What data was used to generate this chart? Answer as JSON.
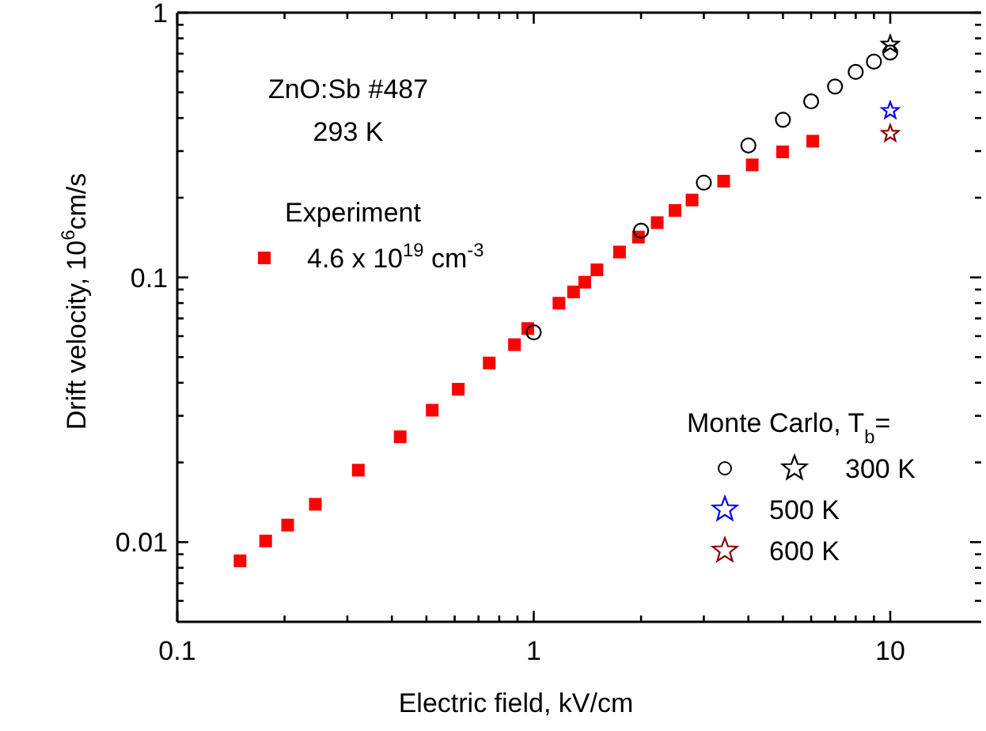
{
  "chart_data": {
    "type": "scatter",
    "xlabel": "Electric field, kV/cm",
    "ylabel": "Drift velocity, 10$^{6}$cm/s",
    "log": "xy",
    "xlim": [
      0.1,
      18
    ],
    "ylim": [
      0.005,
      1
    ],
    "xticks": [
      0.1,
      {
        "value": 0.2,
        "label": null
      },
      {
        "value": 0.3,
        "label": null
      },
      {
        "value": 0.4,
        "label": null
      },
      {
        "value": 0.5,
        "label": null
      },
      {
        "value": 0.6,
        "label": null
      },
      {
        "value": 0.7,
        "label": null
      },
      {
        "value": 0.8,
        "label": null
      },
      {
        "value": 0.9,
        "label": null
      },
      1,
      {
        "value": 2,
        "label": null
      },
      {
        "value": 3,
        "label": null
      },
      {
        "value": 4,
        "label": null
      },
      {
        "value": 5,
        "label": null
      },
      {
        "value": 6,
        "label": null
      },
      {
        "value": 7,
        "label": null
      },
      {
        "value": 8,
        "label": null
      },
      {
        "value": 9,
        "label": null
      },
      10
    ],
    "yticks": [
      {
        "value": 0.006,
        "label": null
      },
      {
        "value": 0.007,
        "label": null
      },
      {
        "value": 0.008,
        "label": null
      },
      {
        "value": 0.009,
        "label": null
      },
      0.01,
      {
        "value": 0.02,
        "label": null
      },
      {
        "value": 0.03,
        "label": null
      },
      {
        "value": 0.04,
        "label": null
      },
      {
        "value": 0.05,
        "label": null
      },
      {
        "value": 0.06,
        "label": null
      },
      {
        "value": 0.07,
        "label": null
      },
      {
        "value": 0.08,
        "label": null
      },
      {
        "value": 0.09,
        "label": null
      },
      0.1,
      {
        "value": 0.2,
        "label": null
      },
      {
        "value": 0.3,
        "label": null
      },
      {
        "value": 0.4,
        "label": null
      },
      {
        "value": 0.5,
        "label": null
      },
      {
        "value": 0.6,
        "label": null
      },
      {
        "value": 0.7,
        "label": null
      },
      {
        "value": 0.8,
        "label": null
      },
      {
        "value": 0.9,
        "label": null
      },
      1
    ],
    "legend": "bottom right",
    "grid": false,
    "annotations": [
      "ZnO:Sb #487",
      "293 K",
      "Experiment",
      "Monte Carlo, T$_{b}$="
    ],
    "series": [
      {
        "name": "4.6 x 10$^{19}$ cm$^{-3}$",
        "color": "#ff0000",
        "marker": "square",
        "x": [
          0.15,
          0.177,
          0.204,
          0.244,
          0.322,
          0.422,
          0.519,
          0.614,
          0.75,
          0.883,
          0.962,
          1.177,
          1.293,
          1.39,
          1.504,
          1.74,
          1.966,
          2.22,
          2.49,
          2.78,
          3.41,
          4.1,
          4.99,
          6.06
        ],
        "values": [
          0.0085,
          0.0101,
          0.0116,
          0.0139,
          0.0187,
          0.025,
          0.0315,
          0.0378,
          0.0475,
          0.0557,
          0.0641,
          0.0799,
          0.0881,
          0.0959,
          0.1068,
          0.1247,
          0.142,
          0.161,
          0.179,
          0.196,
          0.231,
          0.266,
          0.298,
          0.327
        ]
      },
      {
        "color": "#000000",
        "marker": "circle",
        "x": [
          1,
          2,
          3,
          4,
          5,
          6,
          7,
          8,
          9,
          10
        ],
        "values": [
          0.062,
          0.15,
          0.228,
          0.315,
          0.394,
          0.462,
          0.526,
          0.597,
          0.653,
          0.707
        ]
      },
      {
        "name": "300 K",
        "color": "#000000",
        "marker": "star",
        "x": [
          10
        ],
        "values": [
          0.759
        ]
      },
      {
        "name": "500 K",
        "color": "#0000ff",
        "marker": "star",
        "x": [
          10
        ],
        "values": [
          0.426
        ]
      },
      {
        "name": "600 K",
        "color": "#8b0000",
        "marker": "star",
        "x": [
          10
        ],
        "values": [
          0.349
        ]
      }
    ]
  }
}
